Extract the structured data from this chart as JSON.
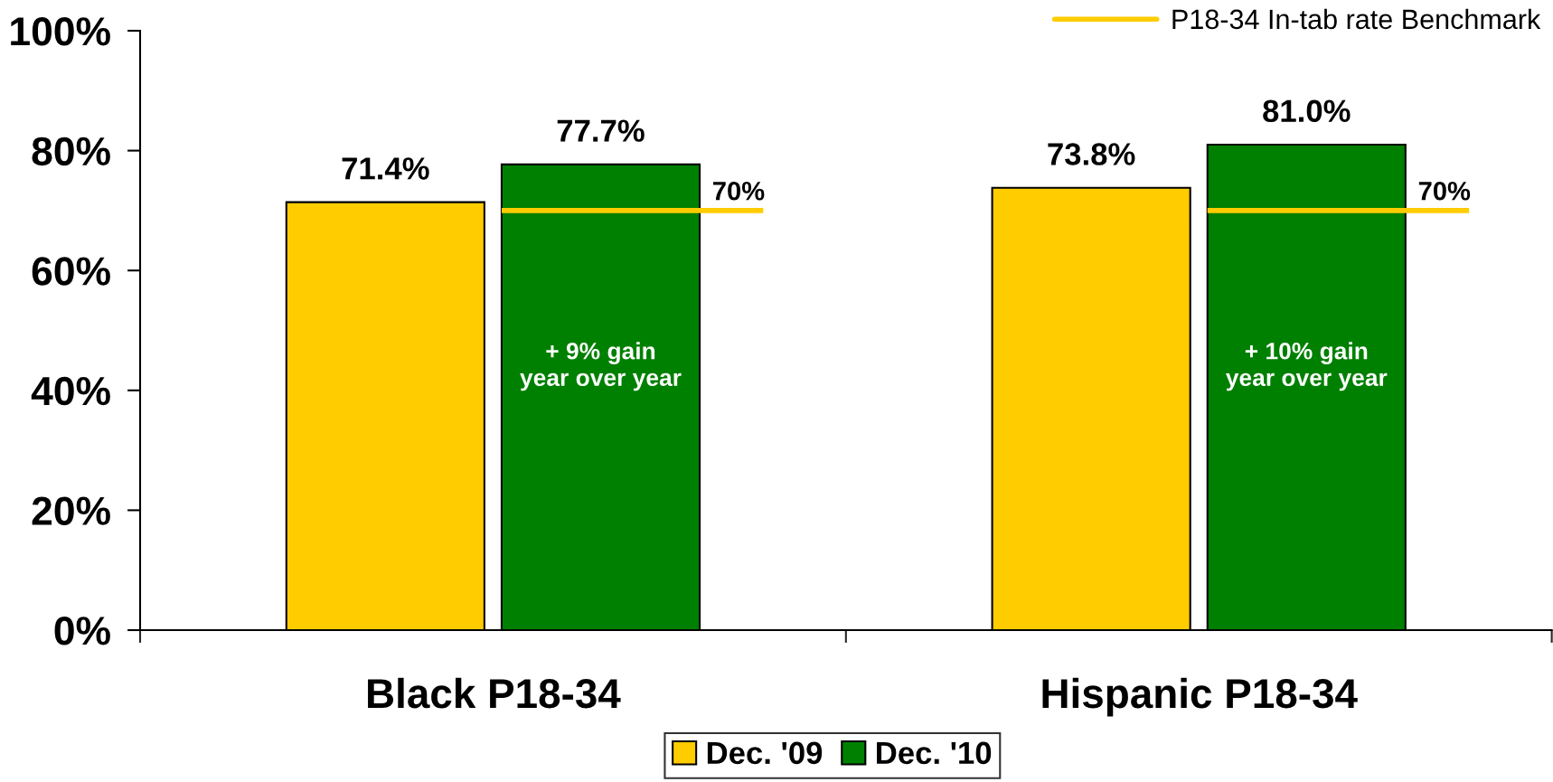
{
  "chart_data": {
    "type": "bar",
    "categories": [
      "Black P18-34",
      "Hispanic P18-34"
    ],
    "series": [
      {
        "name": "Dec. '09",
        "color": "#ffcc00",
        "values": [
          71.4,
          73.8
        ],
        "value_labels": [
          "71.4%",
          "73.8%"
        ]
      },
      {
        "name": "Dec. '10",
        "color": "#008000",
        "values": [
          77.7,
          81.0
        ],
        "value_labels": [
          "77.7%",
          "81.0%"
        ]
      }
    ],
    "ylim": [
      0,
      100
    ],
    "yticks": [
      {
        "value": 0,
        "label": "0%"
      },
      {
        "value": 20,
        "label": "20%"
      },
      {
        "value": 40,
        "label": "40%"
      },
      {
        "value": 60,
        "label": "60%"
      },
      {
        "value": 80,
        "label": "80%"
      },
      {
        "value": 100,
        "label": "100%"
      }
    ],
    "ref_lines": [
      {
        "axis": "y",
        "value": 70,
        "label": "P18-34 In-tab rate Benchmark",
        "color": "#ffcc00"
      }
    ],
    "annotations": [
      "70%",
      "70%",
      "+ 9% gain\nyear over year",
      "+ 10% gain\nyear over year"
    ],
    "legend": "bottom"
  }
}
